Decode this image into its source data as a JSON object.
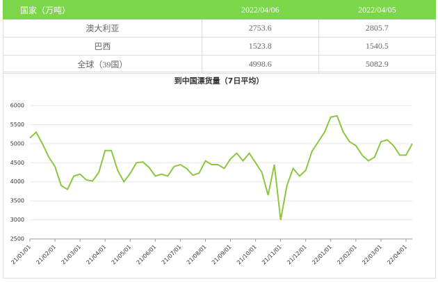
{
  "table": {
    "header": [
      "国家（万吨）",
      "2022/04/06",
      "2022/04/05"
    ],
    "rows": [
      [
        "澳大利亚",
        "2753.6",
        "2805.7"
      ],
      [
        "巴西",
        "1523.8",
        "1540.5"
      ],
      [
        "全球（39国）",
        "4998.6",
        "5082.9"
      ]
    ]
  },
  "chart_data": {
    "type": "line",
    "title": "到中国漂货量（7日平均）",
    "categories": [
      "21/01/01",
      null,
      null,
      null,
      "21/02/01",
      null,
      null,
      null,
      "21/03/01",
      null,
      null,
      null,
      "21/04/01",
      null,
      null,
      null,
      "21/05/01",
      null,
      null,
      null,
      "21/06/01",
      null,
      null,
      null,
      "21/07/01",
      null,
      null,
      null,
      "21/08/01",
      null,
      null,
      null,
      "21/09/01",
      null,
      null,
      null,
      "21/10/01",
      null,
      null,
      null,
      "21/11/01",
      null,
      null,
      null,
      "21/12/01",
      null,
      null,
      null,
      "22/01/01",
      null,
      null,
      null,
      "22/02/01",
      null,
      null,
      null,
      "22/03/01",
      null,
      null,
      null,
      "22/04/01",
      null
    ],
    "series": [
      {
        "color": "#8cc63f",
        "values": [
          5150,
          5300,
          5000,
          4650,
          4400,
          3900,
          3800,
          4150,
          4200,
          4050,
          4020,
          4250,
          4820,
          4820,
          4300,
          4000,
          4220,
          4500,
          4520,
          4380,
          4150,
          4200,
          4150,
          4400,
          4450,
          4350,
          4170,
          4230,
          4550,
          4450,
          4450,
          4350,
          4600,
          4750,
          4550,
          4750,
          4500,
          4250,
          3650,
          4450,
          3000,
          3900,
          4350,
          4150,
          4300,
          4800,
          5050,
          5300,
          5700,
          5730,
          5300,
          5050,
          4950,
          4700,
          4550,
          4650,
          5050,
          5100,
          4950,
          4700,
          4700,
          5000
        ]
      }
    ],
    "ylim": [
      2500,
      6000
    ],
    "yticks": [
      2500,
      3000,
      3500,
      4000,
      4500,
      5000,
      5500,
      6000
    ],
    "grid": true
  }
}
